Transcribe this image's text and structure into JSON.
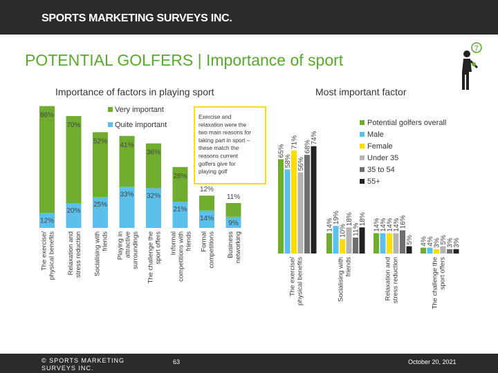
{
  "header": {
    "brand": "SPORTS MARKETING SURVEYS INC."
  },
  "title": "POTENTIAL GOLFERS | Importance of sport",
  "left_subtitle": "Importance of factors in playing sport",
  "right_subtitle": "Most important factor",
  "icon": "golfer-icon",
  "page_badge": "7",
  "callout": "Exercise and relaxation were the two main reasons for taking part in sport – these match the reasons current golfers give for playing golf",
  "footer": {
    "copyright": "© SPORTS MARKETING SURVEYS INC.",
    "page": "63",
    "date": "October 20, 2021"
  },
  "colors": {
    "green": "#70ad2e",
    "blue": "#5bc0eb",
    "yellow": "#ffdd00",
    "light_gray": "#b4b4b4",
    "dark_gray": "#6e6e6e",
    "black": "#222222"
  },
  "chart_data": [
    {
      "type": "bar",
      "stacked": true,
      "legend": [
        "Very important",
        "Quite important"
      ],
      "legend_position": "top-right",
      "categories": [
        "The exercise/ physical benefits",
        "Relaxation and stress reduction",
        "Socialising with friends",
        "Playing in attractive surroundings",
        "The challenge the sport offers",
        "Informal competitions with friends",
        "Formal competitions",
        "Business networking"
      ],
      "series": [
        {
          "name": "Very important",
          "values": [
            86,
            70,
            52,
            41,
            36,
            28,
            12,
            11
          ],
          "labels": [
            "86%",
            "70%",
            "52%",
            "41%",
            "36%",
            "28%",
            "12%",
            "11%"
          ]
        },
        {
          "name": "Quite important",
          "values": [
            12,
            20,
            25,
            33,
            32,
            21,
            14,
            9
          ],
          "labels": [
            "12%",
            "20%",
            "25%",
            "33%",
            "32%",
            "21%",
            "14%",
            "9%"
          ]
        }
      ]
    },
    {
      "type": "bar",
      "legend": [
        "Potential golfers overall",
        "Male",
        "Female",
        "Under 35",
        "35 to 54",
        "55+"
      ],
      "legend_position": "right",
      "categories": [
        "The exercise/ physical benefits",
        "Socialising with friends",
        "Relaxation and stress reduction",
        "The challenge the sport offers"
      ],
      "series": [
        {
          "name": "Potential golfers overall",
          "values": [
            65,
            14,
            14,
            4
          ],
          "labels": [
            "65%",
            "14%",
            "14%",
            "4%"
          ]
        },
        {
          "name": "Male",
          "values": [
            58,
            19,
            14,
            4
          ],
          "labels": [
            "58%",
            "19%",
            "14%",
            "4%"
          ]
        },
        {
          "name": "Female",
          "values": [
            71,
            10,
            14,
            3
          ],
          "labels": [
            "71%",
            "10%",
            "14%",
            "3%"
          ]
        },
        {
          "name": "Under 35",
          "values": [
            56,
            18,
            14,
            5
          ],
          "labels": [
            "56%",
            "18%",
            "14%",
            "5%"
          ]
        },
        {
          "name": "35 to 54",
          "values": [
            68,
            11,
            16,
            3
          ],
          "labels": [
            "68%",
            "11%",
            "16%",
            "3%"
          ]
        },
        {
          "name": "55+",
          "values": [
            74,
            18,
            5,
            3
          ],
          "labels": [
            "74%",
            "18%",
            "5%",
            "3%"
          ]
        }
      ]
    }
  ]
}
